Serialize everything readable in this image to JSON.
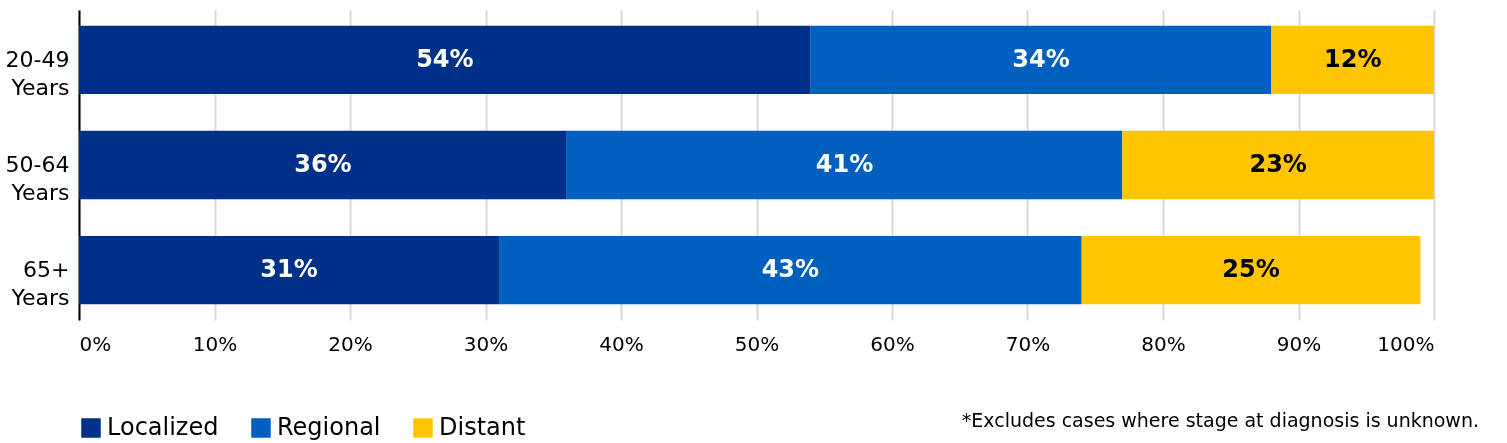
{
  "chart_data": {
    "type": "bar",
    "orientation": "horizontal",
    "stacked": true,
    "categories": [
      "20-49 Years",
      "50-64 Years",
      "65+ Years"
    ],
    "series": [
      {
        "name": "Localized",
        "color": "#003087",
        "values": [
          54,
          36,
          31
        ]
      },
      {
        "name": "Regional",
        "color": "#0060bf",
        "values": [
          34,
          41,
          43
        ]
      },
      {
        "name": "Distant",
        "color": "#ffc600",
        "values": [
          12,
          23,
          25
        ]
      }
    ],
    "xlim": [
      0,
      100
    ],
    "xticks": [
      {
        "value": 0,
        "label": "0%"
      },
      {
        "value": 10,
        "label": "10%"
      },
      {
        "value": 20,
        "label": "20%"
      },
      {
        "value": 30,
        "label": "30%"
      },
      {
        "value": 40,
        "label": "40%"
      },
      {
        "value": 50,
        "label": "50%"
      },
      {
        "value": 60,
        "label": "60%"
      },
      {
        "value": 70,
        "label": "70%"
      },
      {
        "value": 80,
        "label": "80%"
      },
      {
        "value": 90,
        "label": "90%"
      },
      {
        "value": 100,
        "label": "100%"
      }
    ],
    "value_labels": [
      [
        "54%",
        "36%",
        "31%"
      ],
      [
        "34%",
        "41%",
        "43%"
      ],
      [
        "12%",
        "23%",
        "25%"
      ]
    ],
    "grid": "x",
    "legend": "bottom left",
    "annotations": [
      "*Excludes cases where stage at diagnosis is unknown."
    ]
  }
}
